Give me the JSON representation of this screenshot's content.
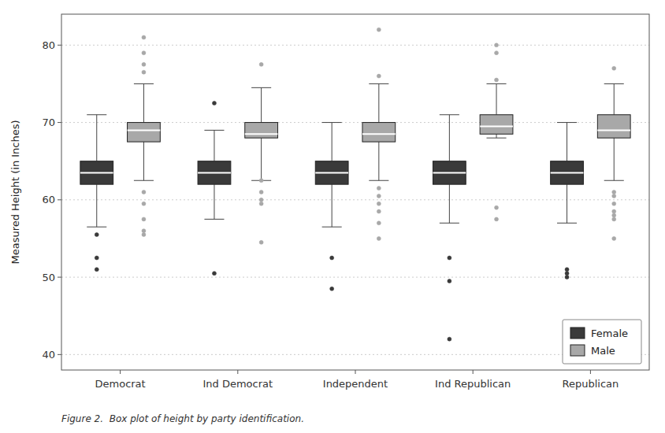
{
  "chart_data": {
    "type": "box",
    "categories": [
      "Democrat",
      "Ind Democrat",
      "Independent",
      "Ind Republican",
      "Republican"
    ],
    "series": [
      {
        "name": "Female",
        "color": "#3a3a3a",
        "whisker_low": [
          56.5,
          57.5,
          56.5,
          57.0,
          57.0
        ],
        "q1": [
          62.0,
          62.0,
          62.0,
          62.0,
          62.0
        ],
        "median": [
          63.5,
          63.5,
          63.5,
          63.5,
          63.5
        ],
        "q3": [
          65.0,
          65.0,
          65.0,
          65.0,
          65.0
        ],
        "whisker_high": [
          71.0,
          69.0,
          70.0,
          71.0,
          70.0
        ],
        "fliers_low": [
          [
            55.5,
            52.5,
            51.0
          ],
          [
            50.5
          ],
          [
            52.5,
            48.5
          ],
          [
            52.5,
            49.5,
            42.0
          ],
          [
            51.0,
            50.5,
            50.0
          ]
        ],
        "fliers_high": [
          [],
          [
            72.5
          ],
          [],
          [],
          []
        ]
      },
      {
        "name": "Male",
        "color": "#a8a8a8",
        "whisker_low": [
          62.5,
          62.5,
          62.5,
          68.0,
          62.5
        ],
        "q1": [
          67.5,
          68.0,
          67.5,
          68.5,
          68.0
        ],
        "median": [
          69.0,
          68.5,
          68.5,
          69.5,
          69.0
        ],
        "q3": [
          70.0,
          70.0,
          70.0,
          71.0,
          71.0
        ],
        "whisker_high": [
          75.0,
          74.5,
          75.0,
          75.0,
          75.0
        ],
        "fliers_low": [
          [
            61.0,
            59.5,
            57.5,
            56.0,
            55.5
          ],
          [
            62.5,
            61.0,
            60.0,
            59.5,
            54.5
          ],
          [
            61.5,
            60.5,
            59.5,
            58.5,
            57.0,
            55.0
          ],
          [
            59.0,
            57.5
          ],
          [
            61.0,
            60.5,
            59.5,
            58.5,
            58.0,
            57.5,
            55.0
          ]
        ],
        "fliers_high": [
          [
            81.0,
            79.0,
            77.5,
            76.5
          ],
          [
            77.5
          ],
          [
            82.0,
            76.0
          ],
          [
            80.0,
            79.0,
            75.5
          ],
          [
            77.0
          ]
        ]
      }
    ],
    "ylabel": "Measured Height (in Inches)",
    "caption": "Figure 2.  Box plot of height by party identification.",
    "ylim": [
      38,
      84
    ],
    "yticks": [
      40,
      50,
      60,
      70,
      80
    ],
    "grid": true,
    "legend": "lower right"
  }
}
